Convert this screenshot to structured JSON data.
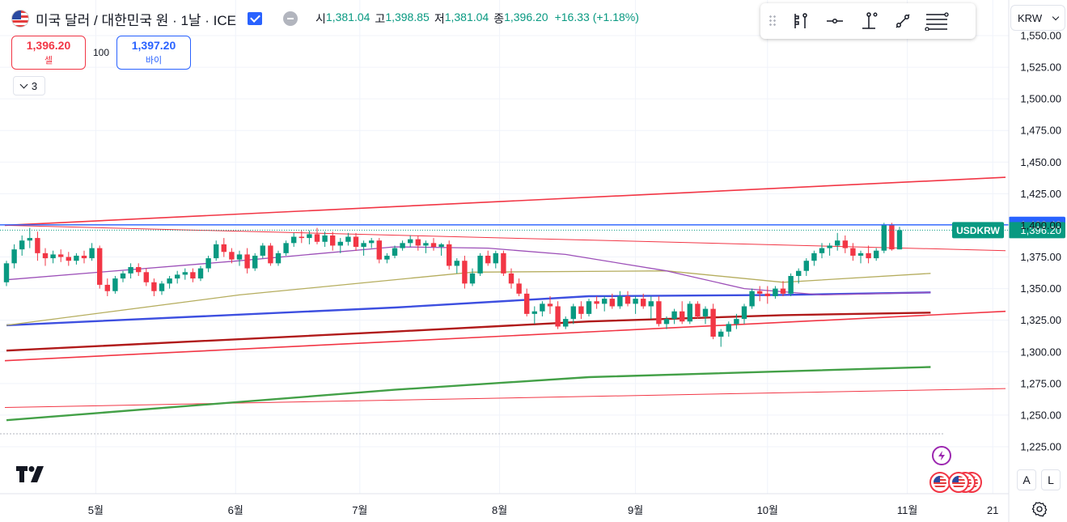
{
  "header": {
    "title": "미국 달러 / 대한민국 원 · 1날 · ICE",
    "ohlc": [
      {
        "label": "시",
        "value": "1,381.04"
      },
      {
        "label": "고",
        "value": "1,398.85"
      },
      {
        "label": "저",
        "value": "1,381.04"
      },
      {
        "label": "종",
        "value": "1,396.20"
      }
    ],
    "change": "+16.33 (+1.18%)"
  },
  "trade": {
    "sell_price": "1,396.20",
    "sell_label": "셀",
    "spread": "100",
    "buy_price": "1,397.20",
    "buy_label": "바이"
  },
  "indicators_collapse": {
    "count": "3"
  },
  "currency": {
    "selected": "KRW"
  },
  "scale_buttons": {
    "auto": "A",
    "log": "L"
  },
  "colors": {
    "up": "#089981",
    "down": "#f23645",
    "accent": "#2962ff",
    "trend_red": "#f23645",
    "ma_purple": "#9c4fb8",
    "ma_olive": "#b5ad5e",
    "ma_blue": "#3d4fe0",
    "ma_darkred": "#b01919",
    "ma_green": "#43a047"
  },
  "toolbar_icons": [
    "long-position-icon",
    "horizontal-ray-icon",
    "vertical-line-icon",
    "trend-line-icon",
    "fib-retracement-icon"
  ],
  "chart_data": {
    "type": "candlestick",
    "symbol": "USDKRW",
    "price_axis": {
      "ylim": [
        1208,
        1560
      ],
      "ticks": [
        "1,550.00",
        "1,525.00",
        "1,500.00",
        "1,475.00",
        "1,450.00",
        "1,425.00",
        "1,400.00",
        "1,375.00",
        "1,350.00",
        "1,325.00",
        "1,300.00",
        "1,275.00",
        "1,250.00",
        "1,225.00"
      ],
      "tick_values": [
        1550,
        1525,
        1500,
        1475,
        1450,
        1425,
        1400,
        1375,
        1350,
        1325,
        1300,
        1275,
        1250,
        1225
      ]
    },
    "time_axis": {
      "labels": [
        "5월",
        "6월",
        "7월",
        "8월",
        "9월",
        "10월",
        "11월",
        "21"
      ]
    },
    "last_price": {
      "label": "USDKRW",
      "value": 1396.2,
      "text": "1,396.20"
    },
    "horizontal_line": {
      "value": 1400.42,
      "text": "1,400.42"
    },
    "candles": [
      [
        1355,
        1372,
        1352,
        1370
      ],
      [
        1370,
        1385,
        1366,
        1381
      ],
      [
        1381,
        1392,
        1376,
        1388
      ],
      [
        1388,
        1398,
        1382,
        1390
      ],
      [
        1390,
        1395,
        1372,
        1378
      ],
      [
        1378,
        1382,
        1368,
        1374
      ],
      [
        1374,
        1380,
        1370,
        1377
      ],
      [
        1377,
        1381,
        1371,
        1375
      ],
      [
        1375,
        1379,
        1368,
        1372
      ],
      [
        1372,
        1378,
        1369,
        1376
      ],
      [
        1376,
        1380,
        1370,
        1374
      ],
      [
        1374,
        1386,
        1372,
        1382
      ],
      [
        1382,
        1384,
        1350,
        1353
      ],
      [
        1353,
        1358,
        1344,
        1348
      ],
      [
        1348,
        1360,
        1346,
        1358
      ],
      [
        1358,
        1364,
        1355,
        1362
      ],
      [
        1362,
        1370,
        1358,
        1367
      ],
      [
        1367,
        1370,
        1360,
        1363
      ],
      [
        1363,
        1366,
        1352,
        1355
      ],
      [
        1355,
        1358,
        1344,
        1348
      ],
      [
        1348,
        1356,
        1345,
        1354
      ],
      [
        1354,
        1360,
        1350,
        1358
      ],
      [
        1358,
        1364,
        1354,
        1361
      ],
      [
        1361,
        1366,
        1357,
        1363
      ],
      [
        1363,
        1366,
        1355,
        1358
      ],
      [
        1358,
        1368,
        1356,
        1366
      ],
      [
        1366,
        1376,
        1363,
        1374
      ],
      [
        1374,
        1388,
        1372,
        1385
      ],
      [
        1385,
        1390,
        1375,
        1379
      ],
      [
        1379,
        1382,
        1370,
        1373
      ],
      [
        1373,
        1380,
        1368,
        1377
      ],
      [
        1377,
        1382,
        1362,
        1366
      ],
      [
        1366,
        1378,
        1364,
        1376
      ],
      [
        1376,
        1386,
        1374,
        1384
      ],
      [
        1384,
        1386,
        1368,
        1370
      ],
      [
        1370,
        1380,
        1368,
        1378
      ],
      [
        1378,
        1388,
        1376,
        1386
      ],
      [
        1386,
        1394,
        1383,
        1391
      ],
      [
        1391,
        1396,
        1386,
        1390
      ],
      [
        1390,
        1396,
        1385,
        1393
      ],
      [
        1393,
        1398,
        1385,
        1387
      ],
      [
        1387,
        1395,
        1383,
        1392
      ],
      [
        1392,
        1395,
        1380,
        1384
      ],
      [
        1384,
        1390,
        1378,
        1387
      ],
      [
        1387,
        1394,
        1384,
        1391
      ],
      [
        1391,
        1394,
        1380,
        1383
      ],
      [
        1383,
        1388,
        1376,
        1386
      ],
      [
        1386,
        1390,
        1382,
        1388
      ],
      [
        1388,
        1390,
        1370,
        1373
      ],
      [
        1373,
        1378,
        1370,
        1376
      ],
      [
        1376,
        1384,
        1374,
        1382
      ],
      [
        1382,
        1388,
        1380,
        1386
      ],
      [
        1386,
        1392,
        1383,
        1389
      ],
      [
        1389,
        1392,
        1380,
        1384
      ],
      [
        1384,
        1388,
        1378,
        1386
      ],
      [
        1386,
        1390,
        1380,
        1383
      ],
      [
        1383,
        1386,
        1376,
        1385
      ],
      [
        1385,
        1388,
        1365,
        1368
      ],
      [
        1368,
        1374,
        1362,
        1372
      ],
      [
        1372,
        1376,
        1350,
        1354
      ],
      [
        1354,
        1366,
        1352,
        1362
      ],
      [
        1362,
        1378,
        1360,
        1376
      ],
      [
        1376,
        1380,
        1368,
        1370
      ],
      [
        1370,
        1380,
        1366,
        1378
      ],
      [
        1378,
        1380,
        1360,
        1362
      ],
      [
        1362,
        1366,
        1350,
        1354
      ],
      [
        1354,
        1358,
        1344,
        1346
      ],
      [
        1346,
        1350,
        1328,
        1330
      ],
      [
        1330,
        1336,
        1322,
        1332
      ],
      [
        1332,
        1340,
        1328,
        1338
      ],
      [
        1338,
        1344,
        1330,
        1336
      ],
      [
        1336,
        1340,
        1318,
        1320
      ],
      [
        1320,
        1328,
        1318,
        1326
      ],
      [
        1326,
        1338,
        1322,
        1336
      ],
      [
        1336,
        1340,
        1326,
        1330
      ],
      [
        1330,
        1342,
        1328,
        1340
      ],
      [
        1340,
        1344,
        1334,
        1338
      ],
      [
        1338,
        1344,
        1332,
        1342
      ],
      [
        1342,
        1346,
        1334,
        1336
      ],
      [
        1336,
        1348,
        1334,
        1344
      ],
      [
        1344,
        1348,
        1336,
        1338
      ],
      [
        1338,
        1344,
        1330,
        1342
      ],
      [
        1342,
        1346,
        1334,
        1336
      ],
      [
        1336,
        1344,
        1326,
        1340
      ],
      [
        1340,
        1344,
        1320,
        1322
      ],
      [
        1322,
        1328,
        1318,
        1326
      ],
      [
        1326,
        1334,
        1322,
        1332
      ],
      [
        1332,
        1340,
        1322,
        1324
      ],
      [
        1324,
        1340,
        1322,
        1338
      ],
      [
        1338,
        1340,
        1326,
        1328
      ],
      [
        1328,
        1336,
        1322,
        1334
      ],
      [
        1334,
        1338,
        1310,
        1312
      ],
      [
        1312,
        1318,
        1304,
        1316
      ],
      [
        1316,
        1324,
        1312,
        1322
      ],
      [
        1322,
        1330,
        1318,
        1326
      ],
      [
        1326,
        1338,
        1322,
        1336
      ],
      [
        1336,
        1350,
        1334,
        1348
      ],
      [
        1348,
        1352,
        1340,
        1346
      ],
      [
        1346,
        1352,
        1338,
        1344
      ],
      [
        1344,
        1352,
        1342,
        1350
      ],
      [
        1350,
        1356,
        1344,
        1346
      ],
      [
        1346,
        1362,
        1344,
        1360
      ],
      [
        1360,
        1366,
        1354,
        1364
      ],
      [
        1364,
        1374,
        1360,
        1372
      ],
      [
        1372,
        1380,
        1368,
        1378
      ],
      [
        1378,
        1386,
        1374,
        1382
      ],
      [
        1382,
        1386,
        1376,
        1384
      ],
      [
        1384,
        1394,
        1380,
        1388
      ],
      [
        1388,
        1392,
        1378,
        1382
      ],
      [
        1382,
        1386,
        1372,
        1376
      ],
      [
        1376,
        1380,
        1370,
        1378
      ],
      [
        1378,
        1384,
        1370,
        1374
      ],
      [
        1374,
        1382,
        1372,
        1380
      ],
      [
        1380,
        1402,
        1378,
        1400
      ],
      [
        1400,
        1402,
        1380,
        1381
      ],
      [
        1381,
        1398.85,
        1381,
        1396.2
      ]
    ],
    "overlays": [
      {
        "kind": "trend_line",
        "color": "#f23645",
        "points": [
          [
            0,
            1400
          ],
          [
            125,
            1438
          ]
        ]
      },
      {
        "kind": "trend_line",
        "color": "#f23645",
        "points": [
          [
            0,
            1293
          ],
          [
            125,
            1332
          ]
        ]
      },
      {
        "kind": "trend_line",
        "color": "#f23645",
        "points": [
          [
            0,
            1400
          ],
          [
            125,
            1380
          ]
        ]
      },
      {
        "kind": "trend_line",
        "color": "#f23645",
        "points": [
          [
            0,
            1256
          ],
          [
            125,
            1271
          ]
        ]
      },
      {
        "kind": "moving_average",
        "color": "#3d4fe0",
        "points": [
          [
            0,
            1321
          ],
          [
            50,
            1335
          ],
          [
            75,
            1344
          ],
          [
            100,
            1345
          ],
          [
            119,
            1347
          ]
        ]
      },
      {
        "kind": "moving_average",
        "color": "#b01919",
        "points": [
          [
            0,
            1301
          ],
          [
            50,
            1316
          ],
          [
            75,
            1324
          ],
          [
            100,
            1329
          ],
          [
            119,
            1331
          ]
        ]
      },
      {
        "kind": "moving_average",
        "color": "#43a047",
        "points": [
          [
            0,
            1246
          ],
          [
            50,
            1270
          ],
          [
            75,
            1280
          ],
          [
            119,
            1288
          ]
        ]
      },
      {
        "kind": "moving_average",
        "color": "#b5ad5e",
        "points": [
          [
            0,
            1321
          ],
          [
            30,
            1345
          ],
          [
            60,
            1363
          ],
          [
            85,
            1364
          ],
          [
            100,
            1355
          ],
          [
            119,
            1362
          ]
        ]
      },
      {
        "kind": "moving_average",
        "color": "#9c4fb8",
        "points": [
          [
            0,
            1357
          ],
          [
            30,
            1372
          ],
          [
            50,
            1383
          ],
          [
            62,
            1382
          ],
          [
            72,
            1377
          ],
          [
            85,
            1364
          ],
          [
            95,
            1350
          ],
          [
            105,
            1345
          ],
          [
            119,
            1347
          ]
        ]
      }
    ]
  }
}
